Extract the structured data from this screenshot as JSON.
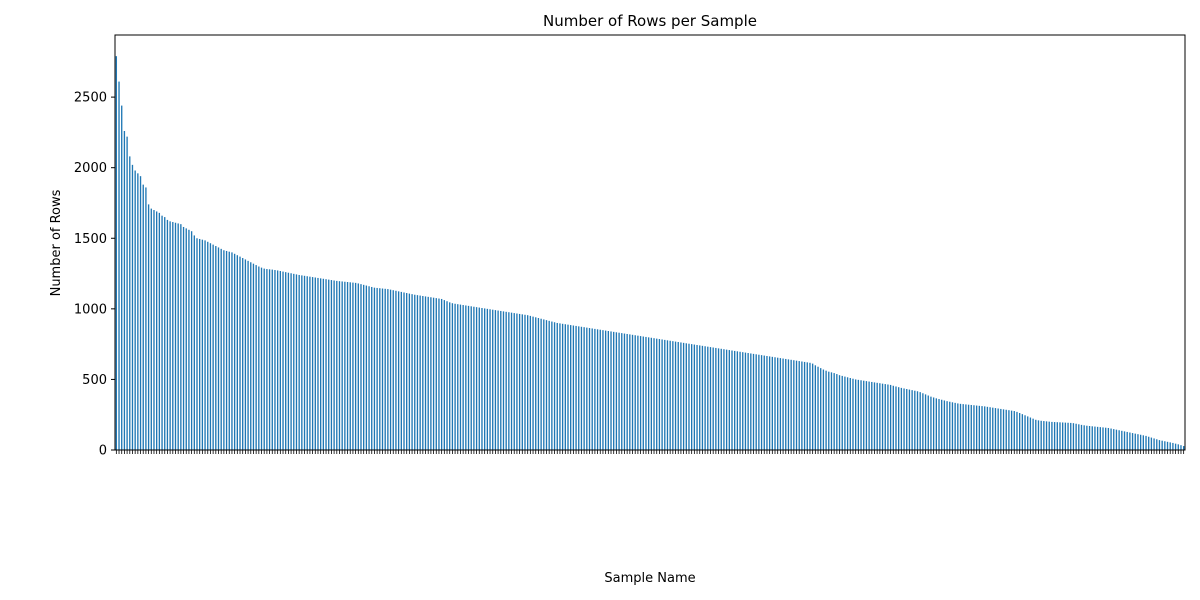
{
  "chart_data": {
    "type": "bar",
    "title": "Number of Rows per Sample",
    "xlabel": "Sample Name",
    "ylabel": "Number of Rows",
    "ylim": [
      0,
      2940
    ],
    "yticks": [
      0,
      500,
      1000,
      1500,
      2000,
      2500
    ],
    "bar_color": "#1f77b4",
    "grid": false,
    "x_tick_labels_note": "Sample names are rotated 45 degrees and fully overlapped; illegible",
    "series": [
      {
        "values": [
          2790,
          2610,
          2440,
          2260,
          2220,
          2080,
          2020,
          1980,
          1960,
          1940,
          1880,
          1860,
          1740,
          1710,
          1700,
          1690,
          1680,
          1660,
          1650,
          1630,
          1620,
          1615,
          1610,
          1605,
          1600,
          1580,
          1570,
          1560,
          1550,
          1520,
          1500,
          1495,
          1490,
          1485,
          1475,
          1465,
          1455,
          1445,
          1435,
          1425,
          1415,
          1410,
          1405,
          1400,
          1390,
          1380,
          1370,
          1360,
          1350,
          1340,
          1330,
          1320,
          1310,
          1300,
          1292,
          1285,
          1282,
          1280,
          1278,
          1275,
          1272,
          1268,
          1264,
          1260,
          1256,
          1252,
          1248,
          1244,
          1240,
          1237,
          1234,
          1231,
          1228,
          1225,
          1222,
          1219,
          1216,
          1213,
          1210,
          1207,
          1204,
          1201,
          1198,
          1196,
          1194,
          1192,
          1190,
          1188,
          1186,
          1184,
          1180,
          1175,
          1170,
          1165,
          1160,
          1155,
          1150,
          1148,
          1146,
          1144,
          1142,
          1140,
          1136,
          1132,
          1128,
          1124,
          1120,
          1116,
          1112,
          1108,
          1104,
          1100,
          1097,
          1094,
          1091,
          1088,
          1085,
          1082,
          1079,
          1076,
          1073,
          1070,
          1062,
          1054,
          1046,
          1040,
          1036,
          1033,
          1030,
          1027,
          1024,
          1021,
          1018,
          1015,
          1012,
          1009,
          1006,
          1003,
          1000,
          997,
          994,
          991,
          988,
          985,
          982,
          979,
          976,
          973,
          970,
          967,
          964,
          961,
          958,
          955,
          950,
          945,
          940,
          935,
          930,
          925,
          920,
          915,
          910,
          905,
          900,
          897,
          894,
          891,
          888,
          885,
          882,
          879,
          876,
          873,
          870,
          867,
          864,
          861,
          858,
          855,
          852,
          849,
          846,
          843,
          840,
          837,
          834,
          831,
          828,
          825,
          822,
          819,
          816,
          813,
          810,
          807,
          804,
          801,
          798,
          795,
          792,
          789,
          786,
          783,
          780,
          777,
          774,
          771,
          768,
          765,
          762,
          759,
          756,
          753,
          750,
          747,
          744,
          741,
          738,
          735,
          732,
          729,
          726,
          723,
          720,
          717,
          714,
          711,
          708,
          705,
          702,
          699,
          696,
          693,
          690,
          687,
          684,
          681,
          678,
          675,
          672,
          669,
          666,
          663,
          660,
          657,
          654,
          651,
          648,
          645,
          642,
          639,
          636,
          633,
          630,
          627,
          624,
          621,
          618,
          612,
          600,
          590,
          580,
          570,
          562,
          555,
          550,
          545,
          538,
          530,
          525,
          520,
          515,
          510,
          505,
          500,
          497,
          494,
          491,
          488,
          485,
          482,
          479,
          476,
          473,
          470,
          467,
          464,
          461,
          455,
          450,
          445,
          440,
          436,
          432,
          428,
          424,
          420,
          416,
          410,
          402,
          394,
          386,
          378,
          372,
          366,
          361,
          356,
          351,
          346,
          342,
          338,
          334,
          330,
          327,
          325,
          323,
          321,
          319,
          317,
          315,
          313,
          311,
          309,
          306,
          303,
          300,
          297,
          294,
          291,
          288,
          285,
          282,
          279,
          276,
          270,
          262,
          254,
          246,
          238,
          230,
          222,
          214,
          210,
          207,
          205,
          203,
          201,
          199,
          198,
          197,
          196,
          195,
          194,
          193,
          192,
          190,
          186,
          182,
          178,
          175,
          172,
          170,
          168,
          166,
          164,
          162,
          160,
          158,
          156,
          152,
          148,
          144,
          140,
          136,
          132,
          128,
          124,
          120,
          116,
          112,
          108,
          104,
          100,
          94,
          88,
          82,
          76,
          70,
          66,
          62,
          58,
          54,
          50,
          45,
          40,
          34,
          28
        ]
      }
    ]
  }
}
